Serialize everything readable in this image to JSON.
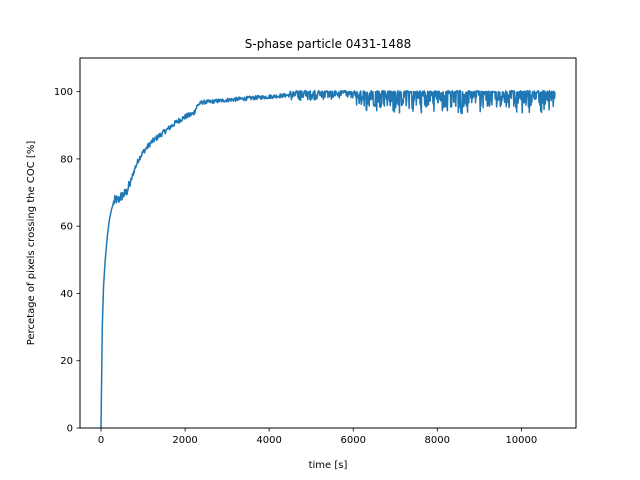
{
  "chart_data": {
    "type": "line",
    "title": "S-phase particle 0431-1488",
    "xlabel": "time [s]",
    "ylabel": "Percetage of pixels crossing the COC [%]",
    "xlim": [
      -500,
      11300
    ],
    "ylim": [
      0,
      110
    ],
    "xticks": [
      0,
      2000,
      4000,
      6000,
      8000,
      10000
    ],
    "yticks": [
      0,
      20,
      40,
      60,
      80,
      100
    ],
    "grid": false,
    "series": [
      {
        "color": "#1f77b4",
        "x": [
          0,
          30,
          60,
          100,
          150,
          200,
          250,
          300,
          350,
          400,
          450,
          500,
          600,
          700,
          800,
          900,
          1000,
          1200,
          1400,
          1600,
          1800,
          2000,
          2200,
          2300,
          2400,
          2600,
          3000,
          3500,
          4000,
          4500,
          4800,
          5000,
          5500,
          6000,
          6500,
          7000,
          7500,
          8000,
          8500,
          9000,
          9500,
          10000,
          10500,
          10800
        ],
        "y": [
          0,
          30,
          42,
          50,
          57,
          62,
          65,
          67,
          68,
          67.5,
          68.5,
          69,
          70,
          73,
          77,
          80,
          82,
          85,
          87,
          89,
          91,
          92.5,
          93.5,
          96,
          96.8,
          97,
          97.5,
          98,
          98.5,
          99,
          99.5,
          99.5,
          99.7,
          99.6,
          99.5,
          99.5,
          99.4,
          99.4,
          99.4,
          99.5,
          99.5,
          99.6,
          99.7,
          99.8
        ],
        "noise": [
          {
            "x_from": 300,
            "x_to": 700,
            "amplitude": 1.5
          },
          {
            "x_from": 700,
            "x_to": 2300,
            "amplitude": 0.8
          },
          {
            "x_from": 2300,
            "x_to": 4500,
            "amplitude": 0.6
          },
          {
            "x_from": 4500,
            "x_to": 6000,
            "amplitude": 2.0
          },
          {
            "x_from": 6000,
            "x_to": 10800,
            "amplitude": 4.0
          }
        ],
        "dips_min": 93
      }
    ]
  }
}
